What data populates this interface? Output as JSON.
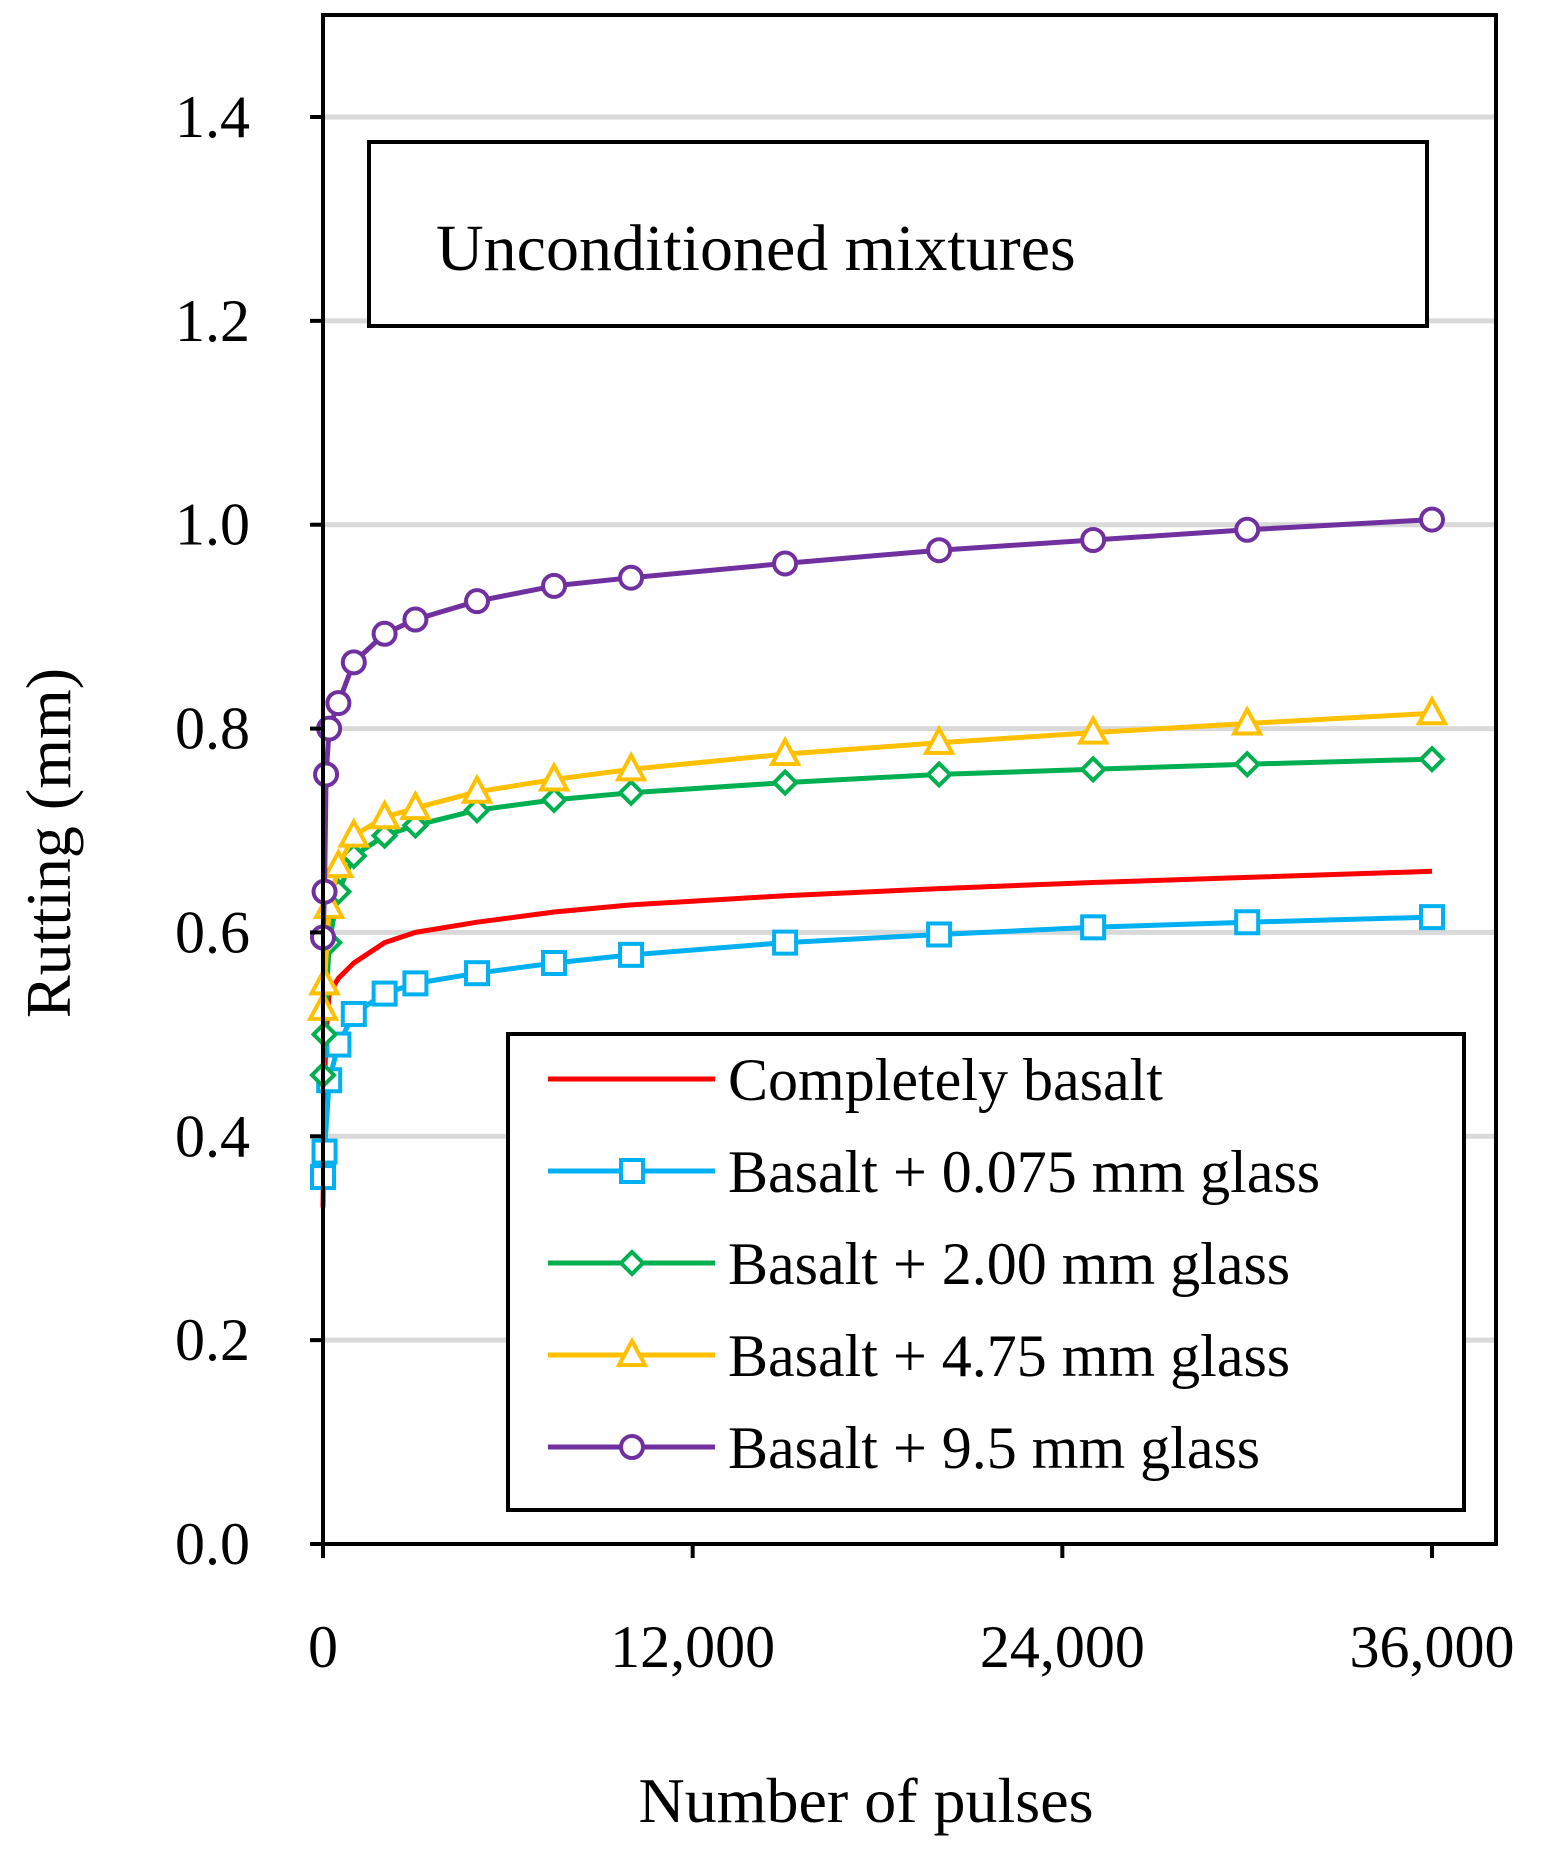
{
  "chart_data": {
    "type": "line",
    "annotation": "Unconditioned mixtures",
    "xlabel": "Number of pulses",
    "ylabel": "Rutting (mm)",
    "xlim": [
      0,
      36000
    ],
    "ylim": [
      0,
      1.4
    ],
    "x_ticks": [
      0,
      12000,
      24000,
      36000
    ],
    "x_tick_labels": [
      "0",
      "12,000",
      "24,000",
      "36,000"
    ],
    "y_ticks": [
      0,
      0.2,
      0.4,
      0.6,
      0.8,
      1.0,
      1.2,
      1.4
    ],
    "y_tick_labels": [
      "0.0",
      "0.2",
      "0.4",
      "0.6",
      "0.8",
      "1.0",
      "1.2",
      "1.4"
    ],
    "grid": "horizontal",
    "legend_position": "bottom-right",
    "series": [
      {
        "name": "Completely basalt",
        "color": "#ff0000",
        "marker": "none",
        "x": [
          0,
          50,
          100,
          200,
          500,
          1000,
          2000,
          3000,
          5000,
          7500,
          10000,
          15000,
          20000,
          25000,
          30000,
          36000
        ],
        "y": [
          0.33,
          0.45,
          0.5,
          0.54,
          0.555,
          0.57,
          0.59,
          0.6,
          0.61,
          0.62,
          0.627,
          0.636,
          0.643,
          0.649,
          0.654,
          0.66
        ]
      },
      {
        "name": "Basalt + 0.075 mm glass",
        "color": "#00b0f0",
        "marker": "square",
        "x": [
          0,
          50,
          200,
          500,
          1000,
          2000,
          3000,
          5000,
          7500,
          10000,
          15000,
          20000,
          25000,
          30000,
          36000
        ],
        "y": [
          0.36,
          0.385,
          0.455,
          0.49,
          0.52,
          0.54,
          0.55,
          0.56,
          0.57,
          0.578,
          0.59,
          0.598,
          0.605,
          0.61,
          0.615
        ]
      },
      {
        "name": "Basalt + 2.00 mm glass",
        "color": "#00b050",
        "marker": "diamond",
        "x": [
          0,
          50,
          200,
          500,
          1000,
          2000,
          3000,
          5000,
          7500,
          10000,
          15000,
          20000,
          25000,
          30000,
          36000
        ],
        "y": [
          0.46,
          0.5,
          0.59,
          0.64,
          0.675,
          0.695,
          0.705,
          0.72,
          0.73,
          0.737,
          0.747,
          0.755,
          0.76,
          0.765,
          0.77
        ]
      },
      {
        "name": "Basalt + 4.75 mm glass",
        "color": "#ffc000",
        "marker": "triangle",
        "x": [
          0,
          50,
          200,
          500,
          1000,
          2000,
          3000,
          5000,
          7500,
          10000,
          15000,
          20000,
          25000,
          30000,
          36000
        ],
        "y": [
          0.525,
          0.55,
          0.625,
          0.665,
          0.695,
          0.713,
          0.722,
          0.738,
          0.75,
          0.76,
          0.775,
          0.786,
          0.796,
          0.805,
          0.815
        ]
      },
      {
        "name": "Basalt + 9.5 mm glass",
        "color": "#7030a0",
        "marker": "circle",
        "x": [
          0,
          50,
          100,
          200,
          500,
          1000,
          2000,
          3000,
          5000,
          7500,
          10000,
          15000,
          20000,
          25000,
          30000,
          36000
        ],
        "y": [
          0.595,
          0.64,
          0.755,
          0.8,
          0.825,
          0.865,
          0.893,
          0.907,
          0.925,
          0.94,
          0.948,
          0.962,
          0.975,
          0.985,
          0.995,
          1.005
        ]
      }
    ]
  }
}
